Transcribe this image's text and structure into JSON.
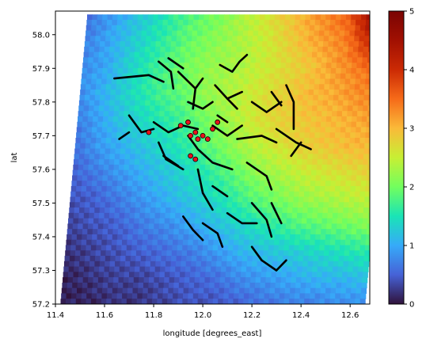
{
  "chart_data": {
    "type": "heatmap",
    "title": "",
    "xlabel": "longitude [degrees_east]",
    "ylabel": "lat",
    "xlim": [
      11.4,
      12.68
    ],
    "ylim": [
      57.2,
      58.07
    ],
    "x_ticks": [
      "11.4",
      "11.6",
      "11.8",
      "12.0",
      "12.2",
      "12.4",
      "12.6"
    ],
    "x_tick_values": [
      11.4,
      11.6,
      11.8,
      12.0,
      12.2,
      12.4,
      12.6
    ],
    "y_ticks": [
      "57.2",
      "57.3",
      "57.4",
      "57.5",
      "57.6",
      "57.7",
      "57.8",
      "57.9",
      "58.0"
    ],
    "y_tick_values": [
      57.2,
      57.3,
      57.4,
      57.5,
      57.6,
      57.7,
      57.8,
      57.9,
      58.0
    ],
    "colorbar": {
      "colormap": "turbo",
      "range": [
        0,
        5
      ],
      "ticks": [
        "0",
        "1",
        "2",
        "3",
        "4",
        "5"
      ],
      "tick_values": [
        0,
        1,
        2,
        3,
        4,
        5
      ]
    },
    "field_grid": {
      "lon_min": 11.42,
      "lon_max": 12.66,
      "lat_min": 57.2,
      "lat_max": 58.06,
      "note": "approximate gridded values estimated from colours",
      "values": [
        [
          0.6,
          0.9,
          1.2,
          1.5,
          1.8,
          2.0,
          2.3,
          2.6,
          2.9,
          3.2,
          3.5,
          3.8,
          4.2
        ],
        [
          0.7,
          1.0,
          1.3,
          1.6,
          1.9,
          2.1,
          2.3,
          2.5,
          2.8,
          3.1,
          3.3,
          3.6,
          3.9
        ],
        [
          0.8,
          1.0,
          1.4,
          1.7,
          2.0,
          2.2,
          2.3,
          2.5,
          2.7,
          2.9,
          3.2,
          3.4,
          3.6
        ],
        [
          0.8,
          1.1,
          1.4,
          1.7,
          1.9,
          2.2,
          2.4,
          2.6,
          2.8,
          3.0,
          3.1,
          3.3,
          3.4
        ],
        [
          0.7,
          1.0,
          1.3,
          1.5,
          1.7,
          2.0,
          2.3,
          2.6,
          2.8,
          2.9,
          3.0,
          3.1,
          3.2
        ],
        [
          0.6,
          0.9,
          1.1,
          1.3,
          1.5,
          1.8,
          2.1,
          2.4,
          2.6,
          2.8,
          2.9,
          3.0,
          3.0
        ],
        [
          0.5,
          0.7,
          0.9,
          1.1,
          1.3,
          1.5,
          1.8,
          2.1,
          2.3,
          2.5,
          2.6,
          2.7,
          2.8
        ],
        [
          0.4,
          0.5,
          0.7,
          0.9,
          1.1,
          1.3,
          1.5,
          1.8,
          2.0,
          2.2,
          2.3,
          2.4,
          2.5
        ],
        [
          0.3,
          0.4,
          0.5,
          0.7,
          0.8,
          1.0,
          1.2,
          1.4,
          1.6,
          1.8,
          1.9,
          2.0,
          2.1
        ],
        [
          0.2,
          0.3,
          0.4,
          0.5,
          0.6,
          0.7,
          0.9,
          1.1,
          1.2,
          1.3,
          1.4,
          1.5,
          1.6
        ],
        [
          0.1,
          0.2,
          0.3,
          0.3,
          0.4,
          0.5,
          0.6,
          0.8,
          0.9,
          1.0,
          1.1,
          1.1,
          1.2
        ],
        [
          0.1,
          0.1,
          0.2,
          0.2,
          0.3,
          0.4,
          0.4,
          0.5,
          0.6,
          0.7,
          0.7,
          0.8,
          0.8
        ]
      ]
    },
    "line_network": {
      "color": "#000000",
      "segments": [
        [
          [
            11.64,
            57.87
          ],
          [
            11.78,
            57.88
          ],
          [
            11.84,
            57.86
          ]
        ],
        [
          [
            11.82,
            57.92
          ],
          [
            11.87,
            57.89
          ],
          [
            11.88,
            57.84
          ]
        ],
        [
          [
            11.86,
            57.93
          ],
          [
            11.92,
            57.9
          ]
        ],
        [
          [
            11.9,
            57.89
          ],
          [
            11.97,
            57.84
          ],
          [
            12.0,
            57.87
          ]
        ],
        [
          [
            11.97,
            57.84
          ],
          [
            11.96,
            57.78
          ]
        ],
        [
          [
            12.07,
            57.91
          ],
          [
            12.12,
            57.89
          ],
          [
            12.15,
            57.92
          ],
          [
            12.18,
            57.94
          ]
        ],
        [
          [
            12.05,
            57.85
          ],
          [
            12.1,
            57.81
          ],
          [
            12.16,
            57.83
          ]
        ],
        [
          [
            12.2,
            57.8
          ],
          [
            12.26,
            57.77
          ],
          [
            12.32,
            57.8
          ]
        ],
        [
          [
            12.34,
            57.85
          ],
          [
            12.37,
            57.8
          ],
          [
            12.37,
            57.72
          ]
        ],
        [
          [
            12.28,
            57.83
          ],
          [
            12.32,
            57.79
          ]
        ],
        [
          [
            11.8,
            57.74
          ],
          [
            11.86,
            57.71
          ],
          [
            11.92,
            57.73
          ],
          [
            11.98,
            57.72
          ]
        ],
        [
          [
            11.7,
            57.76
          ],
          [
            11.75,
            57.71
          ],
          [
            11.8,
            57.72
          ]
        ],
        [
          [
            11.66,
            57.69
          ],
          [
            11.7,
            57.71
          ]
        ],
        [
          [
            11.82,
            57.68
          ],
          [
            11.85,
            57.63
          ],
          [
            11.92,
            57.6
          ]
        ],
        [
          [
            11.84,
            57.64
          ],
          [
            11.9,
            57.61
          ]
        ],
        [
          [
            11.94,
            57.7
          ],
          [
            11.98,
            57.66
          ],
          [
            12.04,
            57.62
          ],
          [
            12.12,
            57.6
          ]
        ],
        [
          [
            12.04,
            57.73
          ],
          [
            12.1,
            57.7
          ],
          [
            12.16,
            57.73
          ]
        ],
        [
          [
            12.14,
            57.69
          ],
          [
            12.24,
            57.7
          ],
          [
            12.3,
            57.68
          ]
        ],
        [
          [
            12.3,
            57.72
          ],
          [
            12.38,
            57.68
          ],
          [
            12.44,
            57.66
          ]
        ],
        [
          [
            12.36,
            57.64
          ],
          [
            12.4,
            57.68
          ]
        ],
        [
          [
            12.18,
            57.62
          ],
          [
            12.26,
            57.58
          ],
          [
            12.28,
            57.54
          ]
        ],
        [
          [
            11.98,
            57.6
          ],
          [
            12.0,
            57.53
          ],
          [
            12.04,
            57.48
          ]
        ],
        [
          [
            12.04,
            57.55
          ],
          [
            12.1,
            57.52
          ]
        ],
        [
          [
            12.0,
            57.44
          ],
          [
            12.06,
            57.41
          ],
          [
            12.08,
            57.37
          ]
        ],
        [
          [
            12.1,
            57.47
          ],
          [
            12.16,
            57.44
          ],
          [
            12.22,
            57.44
          ]
        ],
        [
          [
            12.2,
            57.5
          ],
          [
            12.26,
            57.45
          ],
          [
            12.28,
            57.4
          ]
        ],
        [
          [
            12.28,
            57.5
          ],
          [
            12.32,
            57.44
          ]
        ],
        [
          [
            11.92,
            57.46
          ],
          [
            11.96,
            57.42
          ],
          [
            12.0,
            57.39
          ]
        ],
        [
          [
            12.24,
            57.33
          ],
          [
            12.3,
            57.3
          ],
          [
            12.34,
            57.33
          ]
        ],
        [
          [
            12.2,
            57.37
          ],
          [
            12.24,
            57.33
          ]
        ],
        [
          [
            12.06,
            57.76
          ],
          [
            12.1,
            57.74
          ]
        ],
        [
          [
            11.94,
            57.8
          ],
          [
            12.0,
            57.78
          ],
          [
            12.04,
            57.8
          ]
        ],
        [
          [
            12.1,
            57.81
          ],
          [
            12.14,
            57.78
          ]
        ]
      ]
    },
    "points": {
      "color": "#e8141c",
      "coords": [
        [
          11.78,
          57.71
        ],
        [
          11.91,
          57.73
        ],
        [
          11.94,
          57.74
        ],
        [
          11.95,
          57.7
        ],
        [
          11.97,
          57.71
        ],
        [
          11.98,
          57.69
        ],
        [
          12.0,
          57.7
        ],
        [
          12.02,
          57.69
        ],
        [
          12.04,
          57.72
        ],
        [
          12.06,
          57.74
        ],
        [
          11.95,
          57.64
        ],
        [
          11.97,
          57.63
        ]
      ]
    }
  }
}
